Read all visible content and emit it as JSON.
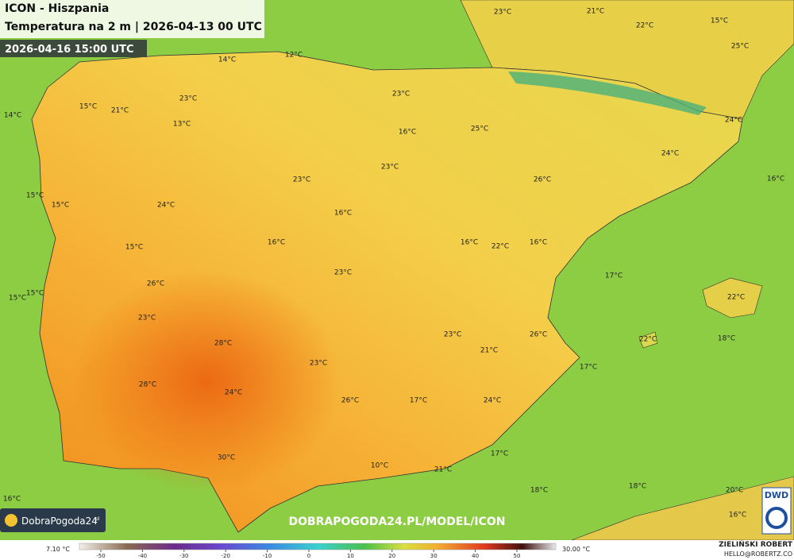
{
  "header": {
    "title": "ICON - Hiszpania",
    "subtitle": "Temperatura na 2 m | 2026-04-13 00 UTC",
    "valid_time": "2026-04-16 15:00 UTC"
  },
  "labels": [
    "23°C",
    "21°C",
    "22°C",
    "15°C",
    "25°C",
    "14°C",
    "12°C",
    "15°C",
    "21°C",
    "23°C",
    "13°C",
    "23°C",
    "14°C",
    "16°C",
    "25°C",
    "24°C",
    "24°C",
    "23°C",
    "23°C",
    "26°C",
    "16°C",
    "15°C",
    "15°C",
    "24°C",
    "16°C",
    "16°C",
    "16°C",
    "22°C",
    "16°C",
    "15°C",
    "26°C",
    "23°C",
    "17°C",
    "15°C",
    "15°C",
    "22°C",
    "23°C",
    "28°C",
    "23°C",
    "26°C",
    "22°C",
    "18°C",
    "21°C",
    "23°C",
    "17°C",
    "28°C",
    "24°C",
    "26°C",
    "17°C",
    "24°C",
    "30°C",
    "17°C",
    "10°C",
    "21°C",
    "18°C",
    "18°C",
    "20°C",
    "16°C",
    "16°C"
  ],
  "logo": {
    "name": "DobraPogoda24",
    "suffix": "pl"
  },
  "url": "DOBRAPOGODA24.PL/MODEL/ICON",
  "dwd": "DWD",
  "author": {
    "name": "ZIELIŃSKI ROBERT",
    "email": "HELLO@ROBERTZ.CO"
  },
  "colorbar": {
    "min_label": "7.10 °C",
    "max_label": "30.00 °C",
    "range": [
      -50,
      50
    ],
    "ticks": [
      -50,
      -40,
      -30,
      -20,
      -10,
      0,
      10,
      20,
      30,
      40,
      50
    ]
  }
}
